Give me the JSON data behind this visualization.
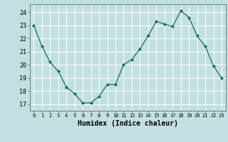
{
  "x": [
    0,
    1,
    2,
    3,
    4,
    5,
    6,
    7,
    8,
    9,
    10,
    11,
    12,
    13,
    14,
    15,
    16,
    17,
    18,
    19,
    20,
    21,
    22,
    23
  ],
  "y": [
    23.0,
    21.4,
    20.2,
    19.5,
    18.3,
    17.8,
    17.1,
    17.1,
    17.6,
    18.5,
    18.5,
    20.0,
    20.4,
    21.2,
    22.2,
    23.3,
    23.1,
    22.9,
    24.1,
    23.6,
    22.2,
    21.4,
    19.9,
    19.0
  ],
  "line_color": "#1a6b5a",
  "marker": "D",
  "marker_size": 2.0,
  "bg_color": "#c2e0e0",
  "grid_color": "#ffffff",
  "xlabel": "Humidex (Indice chaleur)",
  "xlabel_fontsize": 7,
  "ylabel_ticks": [
    17,
    18,
    19,
    20,
    21,
    22,
    23,
    24
  ],
  "xtick_labels": [
    "0",
    "1",
    "2",
    "3",
    "4",
    "5",
    "6",
    "7",
    "8",
    "9",
    "10",
    "11",
    "12",
    "13",
    "14",
    "15",
    "16",
    "17",
    "18",
    "19",
    "20",
    "21",
    "22",
    "23"
  ],
  "ylim": [
    16.5,
    24.6
  ],
  "xlim": [
    -0.5,
    23.5
  ]
}
